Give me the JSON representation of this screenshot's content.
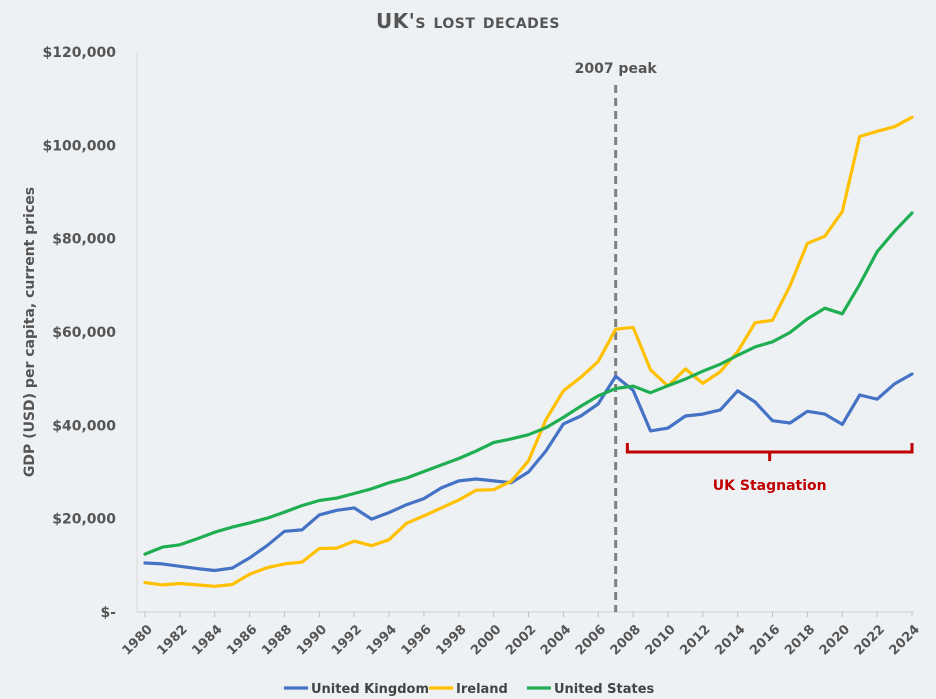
{
  "chart_data": {
    "type": "line",
    "title": "UK's lost decades",
    "ylabel": "GDP (USD) per capita, current prices",
    "xlabel": "",
    "ylim": [
      0,
      120000
    ],
    "yticks": [
      0,
      20000,
      40000,
      60000,
      80000,
      100000,
      120000
    ],
    "ytick_labels": [
      "$-",
      "$20,000",
      "$40,000",
      "$60,000",
      "$80,000",
      "$100,000",
      "$120,000"
    ],
    "x": [
      1980,
      1981,
      1982,
      1983,
      1984,
      1985,
      1986,
      1987,
      1988,
      1989,
      1990,
      1991,
      1992,
      1993,
      1994,
      1995,
      1996,
      1997,
      1998,
      1999,
      2000,
      2001,
      2002,
      2003,
      2004,
      2005,
      2006,
      2007,
      2008,
      2009,
      2010,
      2011,
      2012,
      2013,
      2014,
      2015,
      2016,
      2017,
      2018,
      2019,
      2020,
      2021,
      2022,
      2023,
      2024
    ],
    "xtick_labels": [
      "1980",
      "1982",
      "1984",
      "1986",
      "1988",
      "1990",
      "1992",
      "1994",
      "1996",
      "1998",
      "2000",
      "2002",
      "2004",
      "2006",
      "2008",
      "2010",
      "2012",
      "2014",
      "2016",
      "2018",
      "2020",
      "2022",
      "2024"
    ],
    "grid": false,
    "legend_position": "bottom",
    "series": [
      {
        "name": "United Kingdom",
        "color": "#4472c4",
        "values": [
          10500,
          10300,
          9800,
          9300,
          8900,
          9400,
          11600,
          14200,
          17300,
          17600,
          20800,
          21800,
          22300,
          19900,
          21300,
          23000,
          24300,
          26600,
          28100,
          28500,
          28100,
          27700,
          30000,
          34500,
          40300,
          42000,
          44600,
          50500,
          47500,
          38800,
          39400,
          42000,
          42400,
          43300,
          47400,
          45000,
          41000,
          40500,
          43000,
          42400,
          40200,
          46500,
          45600,
          48900,
          51000
        ]
      },
      {
        "name": "Ireland",
        "color": "#ffc000",
        "values": [
          6300,
          5800,
          6100,
          5800,
          5500,
          5900,
          8100,
          9500,
          10300,
          10700,
          13600,
          13700,
          15200,
          14200,
          15500,
          19000,
          20600,
          22300,
          24000,
          26100,
          26200,
          28000,
          32400,
          41200,
          47400,
          50300,
          53700,
          60600,
          61000,
          51900,
          48400,
          52100,
          49000,
          51500,
          55800,
          62000,
          62500,
          69900,
          79000,
          80500,
          85800,
          101900,
          103000,
          104000,
          106000
        ]
      },
      {
        "name": "United States",
        "color": "#1fae52",
        "values": [
          12400,
          13900,
          14400,
          15700,
          17100,
          18200,
          19100,
          20100,
          21400,
          22800,
          23900,
          24400,
          25400,
          26400,
          27700,
          28700,
          30100,
          31500,
          32900,
          34500,
          36300,
          37100,
          38000,
          39500,
          41700,
          44100,
          46300,
          47900,
          48400,
          47000,
          48500,
          49900,
          51600,
          53100,
          55000,
          56800,
          57900,
          59900,
          62800,
          65100,
          63900,
          70200,
          77200,
          81600,
          85500
        ]
      }
    ],
    "annotations": {
      "peak_label": "2007 peak",
      "peak_year": 2007,
      "stagnation_label": "UK Stagnation",
      "stagnation_start": 2007.5,
      "stagnation_end": 2024,
      "stagnation_color": "#c00000"
    }
  }
}
